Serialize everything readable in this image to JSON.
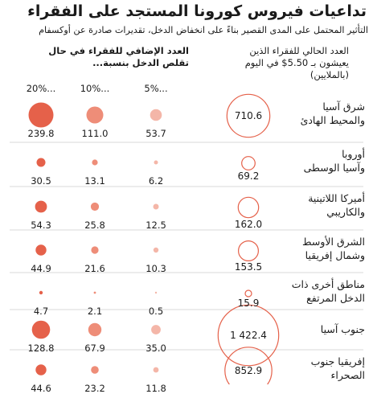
{
  "chart_data": {
    "type": "scatter",
    "title": "تداعيات فيروس كورونا المستجد على الفقراء",
    "subtitle": "التأثير المحتمل على المدى القصير بناءً على انخفاض الدخل، تقديرات صادرة عن أوكسفام",
    "columns": {
      "current_header": [
        "العدد الحالي للفقراء الذين",
        "يعيشون بـ 5.50$ في اليوم",
        "(بالملايين)"
      ],
      "additional_header": [
        "العدد الإضافي للفقراء في حال",
        "تقلص الدخل بنسبة..."
      ],
      "percent_labels": [
        "5%...",
        "10%...",
        "20%..."
      ]
    },
    "colors": {
      "current_circle_stroke": "#e5614a",
      "additional_fill_5": "#f4b6a8",
      "additional_fill_10": "#ee8d78",
      "additional_fill_20": "#e5614a"
    },
    "rows": [
      {
        "region": [
          "شرق آسيا",
          "والمحيط الهادئ"
        ],
        "current": 710.6,
        "current_label": "710.6",
        "p5": 53.7,
        "p5_label": "53.7",
        "p10": 111.0,
        "p10_label": "111.0",
        "p20": 239.8,
        "p20_label": "239.8"
      },
      {
        "region": [
          "أوروبا",
          "وآسيا الوسطى"
        ],
        "current": 69.2,
        "current_label": "69.2",
        "p5": 6.2,
        "p5_label": "6.2",
        "p10": 13.1,
        "p10_label": "13.1",
        "p20": 30.5,
        "p20_label": "30.5"
      },
      {
        "region": [
          "أميركا اللاتينية",
          "والكاريبي"
        ],
        "current": 162.0,
        "current_label": "162.0",
        "p5": 12.5,
        "p5_label": "12.5",
        "p10": 25.8,
        "p10_label": "25.8",
        "p20": 54.3,
        "p20_label": "54.3"
      },
      {
        "region": [
          "الشرق الأوسط",
          "وشمال إفريقيا"
        ],
        "current": 153.5,
        "current_label": "153.5",
        "p5": 10.3,
        "p5_label": "10.3",
        "p10": 21.6,
        "p10_label": "21.6",
        "p20": 44.9,
        "p20_label": "44.9"
      },
      {
        "region": [
          "مناطق أخرى ذات",
          "الدخل المرتفع"
        ],
        "current": 15.9,
        "current_label": "15.9",
        "p5": 0.5,
        "p5_label": "0.5",
        "p10": 2.1,
        "p10_label": "2.1",
        "p20": 4.7,
        "p20_label": "4.7"
      },
      {
        "region": [
          "جنوب آسيا"
        ],
        "current": 1422.4,
        "current_label": "1 422.4",
        "p5": 35.0,
        "p5_label": "35.0",
        "p10": 67.9,
        "p10_label": "67.9",
        "p20": 128.8,
        "p20_label": "128.8"
      },
      {
        "region": [
          "إفريقيا جنوب",
          "الصحراء"
        ],
        "current": 852.9,
        "current_label": "852.9",
        "p5": 11.8,
        "p5_label": "11.8",
        "p10": 23.2,
        "p10_label": "23.2",
        "p20": 44.6,
        "p20_label": "44.6"
      }
    ]
  }
}
